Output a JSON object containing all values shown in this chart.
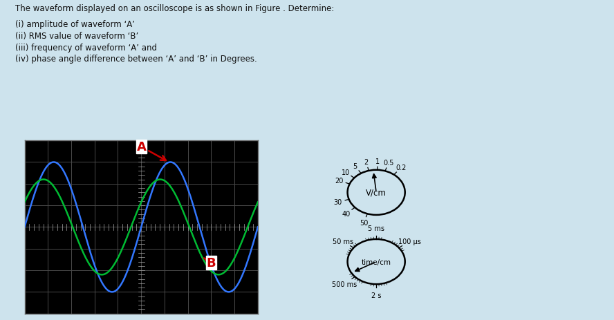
{
  "bg_color": "#cde3ed",
  "title_text": "The waveform displayed on an oscilloscope is as shown in Figure . Determine:",
  "questions": [
    "(i) amplitude of waveform ‘A’",
    "(ii) RMS value of waveform ‘B’",
    "(iii) frequency of waveform ‘A’ and",
    "(iv) phase angle difference between ‘A’ and ‘B’ in Degrees."
  ],
  "osc_bg": "#000000",
  "wave_A_color": "#3377ff",
  "wave_B_color": "#00bb33",
  "wave_A_amplitude": 3.0,
  "wave_B_amplitude": 2.2,
  "wave_A_phase": 0.0,
  "wave_B_phase": 0.55,
  "grid_major_color": "#4a4a4a",
  "label_color": "#cc0000",
  "panel_bg": "#ffffff",
  "text_color": "#111111",
  "font_size": 8.5
}
